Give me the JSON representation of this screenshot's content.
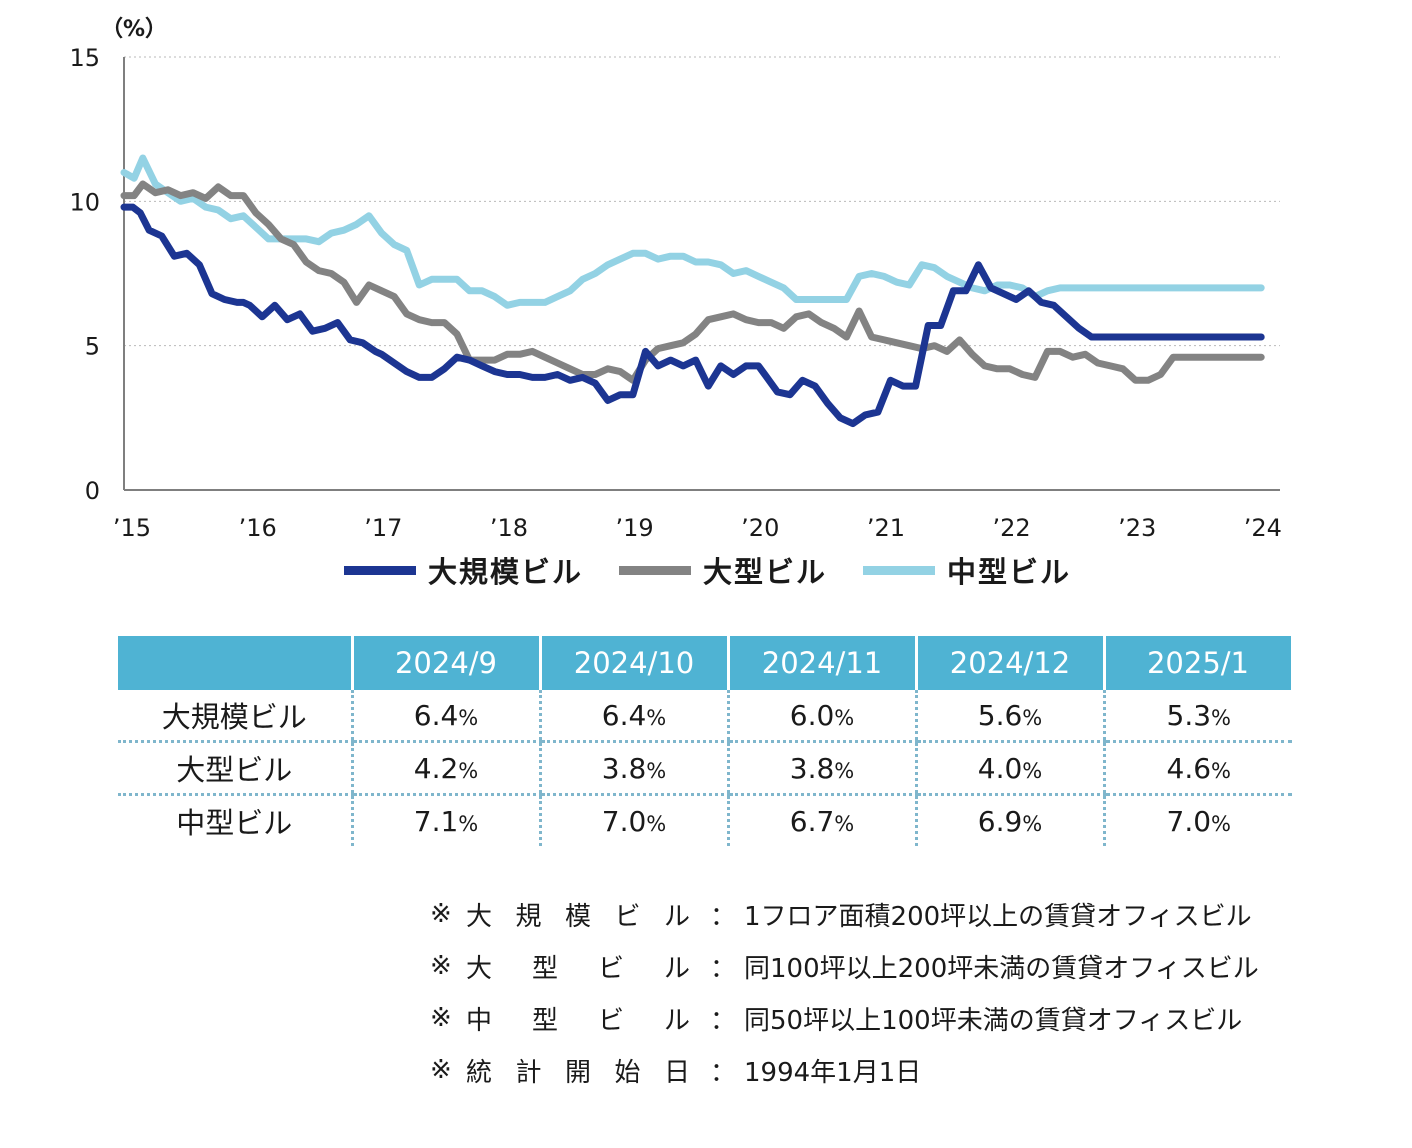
{
  "chart_data": {
    "type": "line",
    "unit_label": "（%）",
    "ylim": [
      0,
      15
    ],
    "yticks": [
      0,
      5,
      10,
      15
    ],
    "x_range": [
      2015,
      2024.2
    ],
    "x_tick_values": [
      2015,
      2016,
      2017,
      2018,
      2019,
      2020,
      2021,
      2022,
      2023,
      2024
    ],
    "x_tick_labels": [
      "’15",
      "’16",
      "’17",
      "’18",
      "’19",
      "’20",
      "’21",
      "’22",
      "’23",
      "’24"
    ],
    "grid": "horizontal-dotted",
    "series": [
      {
        "name": "大規模ビル",
        "color": "#1c3592",
        "x": [
          2015.0,
          2015.07,
          2015.13,
          2015.2,
          2015.3,
          2015.4,
          2015.5,
          2015.6,
          2015.7,
          2015.8,
          2015.9,
          2015.95,
          2016.0,
          2016.1,
          2016.2,
          2016.3,
          2016.4,
          2016.5,
          2016.6,
          2016.7,
          2016.8,
          2016.9,
          2017.0,
          2017.05,
          2017.15,
          2017.25,
          2017.35,
          2017.45,
          2017.55,
          2017.65,
          2017.75,
          2017.85,
          2017.95,
          2018.05,
          2018.15,
          2018.25,
          2018.35,
          2018.45,
          2018.55,
          2018.65,
          2018.75,
          2018.85,
          2018.95,
          2019.05,
          2019.15,
          2019.25,
          2019.35,
          2019.45,
          2019.55,
          2019.65,
          2019.75,
          2019.85,
          2019.95,
          2020.05,
          2020.1,
          2020.2,
          2020.3,
          2020.4,
          2020.5,
          2020.6,
          2020.7,
          2020.8,
          2020.9,
          2021.0,
          2021.1,
          2021.2,
          2021.3,
          2021.4,
          2021.5,
          2021.6,
          2021.7,
          2021.8,
          2021.9,
          2022.0,
          2022.1,
          2022.2,
          2022.3,
          2022.4,
          2022.5,
          2022.6,
          2022.7,
          2022.8,
          2022.9,
          2022.95,
          2023.0,
          2023.05,
          2023.1,
          2023.15,
          2023.2,
          2023.3,
          2023.4,
          2023.5,
          2023.6,
          2023.7,
          2023.8,
          2023.9,
          2024.0,
          2024.05
        ],
        "values": [
          9.8,
          9.8,
          9.6,
          9.0,
          8.8,
          8.1,
          8.2,
          7.8,
          6.8,
          6.6,
          6.5,
          6.5,
          6.4,
          6.0,
          6.4,
          5.9,
          6.1,
          5.5,
          5.6,
          5.8,
          5.2,
          5.1,
          4.8,
          4.7,
          4.4,
          4.1,
          3.9,
          3.9,
          4.2,
          4.6,
          4.5,
          4.3,
          4.1,
          4.0,
          4.0,
          3.9,
          3.9,
          4.0,
          3.8,
          3.9,
          3.7,
          3.1,
          3.3,
          3.3,
          4.8,
          4.3,
          4.5,
          4.3,
          4.5,
          3.6,
          4.3,
          4.0,
          4.3,
          4.3,
          4.0,
          3.4,
          3.3,
          3.8,
          3.6,
          3.0,
          2.5,
          2.3,
          2.6,
          2.7,
          3.8,
          3.6,
          3.6,
          5.7,
          5.7,
          6.9,
          6.9,
          7.8,
          7.0,
          6.8,
          6.6,
          6.9,
          6.5,
          6.4,
          6.0,
          5.6,
          5.3,
          5.3,
          5.3,
          5.3,
          5.3,
          5.3,
          5.3,
          5.3,
          5.3,
          5.3,
          5.3,
          5.3,
          5.3,
          5.3,
          5.3,
          5.3,
          5.3,
          5.3
        ]
      },
      {
        "name": "大型ビル",
        "color": "#838383",
        "x": [
          2015.0,
          2015.08,
          2015.15,
          2015.25,
          2015.35,
          2015.45,
          2015.55,
          2015.65,
          2015.75,
          2015.85,
          2015.95,
          2016.05,
          2016.15,
          2016.25,
          2016.35,
          2016.45,
          2016.55,
          2016.65,
          2016.75,
          2016.85,
          2016.95,
          2017.05,
          2017.15,
          2017.25,
          2017.35,
          2017.45,
          2017.55,
          2017.65,
          2017.75,
          2017.85,
          2017.95,
          2018.05,
          2018.15,
          2018.25,
          2018.35,
          2018.45,
          2018.55,
          2018.65,
          2018.75,
          2018.85,
          2018.95,
          2019.05,
          2019.15,
          2019.25,
          2019.35,
          2019.45,
          2019.55,
          2019.65,
          2019.75,
          2019.85,
          2019.95,
          2020.05,
          2020.15,
          2020.25,
          2020.35,
          2020.45,
          2020.55,
          2020.65,
          2020.75,
          2020.85,
          2020.95,
          2021.05,
          2021.15,
          2021.25,
          2021.35,
          2021.45,
          2021.55,
          2021.65,
          2021.75,
          2021.85,
          2021.95,
          2022.05,
          2022.15,
          2022.25,
          2022.35,
          2022.45,
          2022.55,
          2022.65,
          2022.75,
          2022.85,
          2022.95,
          2023.05,
          2023.15,
          2023.25,
          2023.35,
          2023.45,
          2023.55,
          2023.65,
          2023.75,
          2023.85,
          2023.95,
          2024.05
        ],
        "values": [
          10.2,
          10.2,
          10.6,
          10.3,
          10.4,
          10.2,
          10.3,
          10.1,
          10.5,
          10.2,
          10.2,
          9.6,
          9.2,
          8.7,
          8.5,
          7.9,
          7.6,
          7.5,
          7.2,
          6.5,
          7.1,
          6.9,
          6.7,
          6.1,
          5.9,
          5.8,
          5.8,
          5.4,
          4.5,
          4.5,
          4.5,
          4.7,
          4.7,
          4.8,
          4.6,
          4.4,
          4.2,
          4.0,
          4.0,
          4.2,
          4.1,
          3.8,
          4.5,
          4.9,
          5.0,
          5.1,
          5.4,
          5.9,
          6.0,
          6.1,
          5.9,
          5.8,
          5.8,
          5.6,
          6.0,
          6.1,
          5.8,
          5.6,
          5.3,
          6.2,
          5.3,
          5.2,
          5.1,
          5.0,
          4.9,
          5.0,
          4.8,
          5.2,
          4.7,
          4.3,
          4.2,
          4.2,
          4.0,
          3.9,
          4.8,
          4.8,
          4.6,
          4.7,
          4.4,
          4.3,
          4.2,
          3.8,
          3.8,
          4.0,
          4.6,
          4.6,
          4.6,
          4.6,
          4.6,
          4.6,
          4.6,
          4.6
        ]
      },
      {
        "name": "中型ビル",
        "color": "#93d2e4",
        "x": [
          2015.0,
          2015.08,
          2015.15,
          2015.25,
          2015.35,
          2015.45,
          2015.55,
          2015.65,
          2015.75,
          2015.85,
          2015.95,
          2016.05,
          2016.15,
          2016.25,
          2016.35,
          2016.45,
          2016.55,
          2016.65,
          2016.75,
          2016.85,
          2016.95,
          2017.05,
          2017.15,
          2017.25,
          2017.35,
          2017.45,
          2017.55,
          2017.65,
          2017.75,
          2017.85,
          2017.95,
          2018.05,
          2018.15,
          2018.25,
          2018.35,
          2018.45,
          2018.55,
          2018.65,
          2018.75,
          2018.85,
          2018.95,
          2019.05,
          2019.15,
          2019.25,
          2019.35,
          2019.45,
          2019.55,
          2019.65,
          2019.75,
          2019.85,
          2019.95,
          2020.05,
          2020.15,
          2020.25,
          2020.35,
          2020.45,
          2020.55,
          2020.65,
          2020.75,
          2020.85,
          2020.95,
          2021.05,
          2021.15,
          2021.25,
          2021.35,
          2021.45,
          2021.55,
          2021.65,
          2021.75,
          2021.85,
          2021.95,
          2022.05,
          2022.15,
          2022.25,
          2022.35,
          2022.45,
          2022.55,
          2022.65,
          2022.75,
          2022.85,
          2022.95,
          2023.05,
          2023.15,
          2023.25,
          2023.35,
          2023.45,
          2023.55,
          2023.65,
          2023.75,
          2023.85,
          2023.95,
          2024.05
        ],
        "values": [
          11.0,
          10.8,
          11.5,
          10.6,
          10.3,
          10.0,
          10.1,
          9.8,
          9.7,
          9.4,
          9.5,
          9.1,
          8.7,
          8.7,
          8.7,
          8.7,
          8.6,
          8.9,
          9.0,
          9.2,
          9.5,
          8.9,
          8.5,
          8.3,
          7.1,
          7.3,
          7.3,
          7.3,
          6.9,
          6.9,
          6.7,
          6.4,
          6.5,
          6.5,
          6.5,
          6.7,
          6.9,
          7.3,
          7.5,
          7.8,
          8.0,
          8.2,
          8.2,
          8.0,
          8.1,
          8.1,
          7.9,
          7.9,
          7.8,
          7.5,
          7.6,
          7.4,
          7.2,
          7.0,
          6.6,
          6.6,
          6.6,
          6.6,
          6.6,
          7.4,
          7.5,
          7.4,
          7.2,
          7.1,
          7.8,
          7.7,
          7.4,
          7.2,
          7.0,
          6.9,
          7.1,
          7.1,
          7.0,
          6.7,
          6.9,
          7.0,
          7.0,
          7.0,
          7.0,
          7.0,
          7.0,
          7.0,
          7.0,
          7.0,
          7.0,
          7.0,
          7.0,
          7.0,
          7.0,
          7.0,
          7.0,
          7.0
        ]
      }
    ]
  },
  "table": {
    "columns": [
      "2024/9",
      "2024/10",
      "2024/11",
      "2024/12",
      "2025/1"
    ],
    "rows": [
      {
        "label": "大規模ビル",
        "values": [
          "6.4",
          "6.4",
          "6.0",
          "5.6",
          "5.3"
        ]
      },
      {
        "label": "大型ビル",
        "values": [
          "4.2",
          "3.8",
          "3.8",
          "4.0",
          "4.6"
        ]
      },
      {
        "label": "中型ビル",
        "values": [
          "7.1",
          "7.0",
          "6.7",
          "6.9",
          "7.0"
        ]
      }
    ],
    "unit": "%",
    "header_color": "#4fb3d3"
  },
  "notes": [
    {
      "mark": "※",
      "term": [
        "大",
        "規",
        "模",
        "ビ",
        "ル"
      ],
      "colon": "：",
      "desc": "1フロア面積200坪以上の賃貸オフィスビル"
    },
    {
      "mark": "※",
      "term": [
        "大",
        "型",
        "ビ",
        "ル"
      ],
      "colon": "：",
      "desc": "同100坪以上200坪未満の賃貸オフィスビル"
    },
    {
      "mark": "※",
      "term": [
        "中",
        "型",
        "ビ",
        "ル"
      ],
      "colon": "：",
      "desc": "同50坪以上100坪未満の賃貸オフィスビル"
    },
    {
      "mark": "※",
      "term": [
        "統",
        "計",
        "開",
        "始",
        "日"
      ],
      "colon": "：",
      "desc": "1994年1月1日"
    }
  ]
}
